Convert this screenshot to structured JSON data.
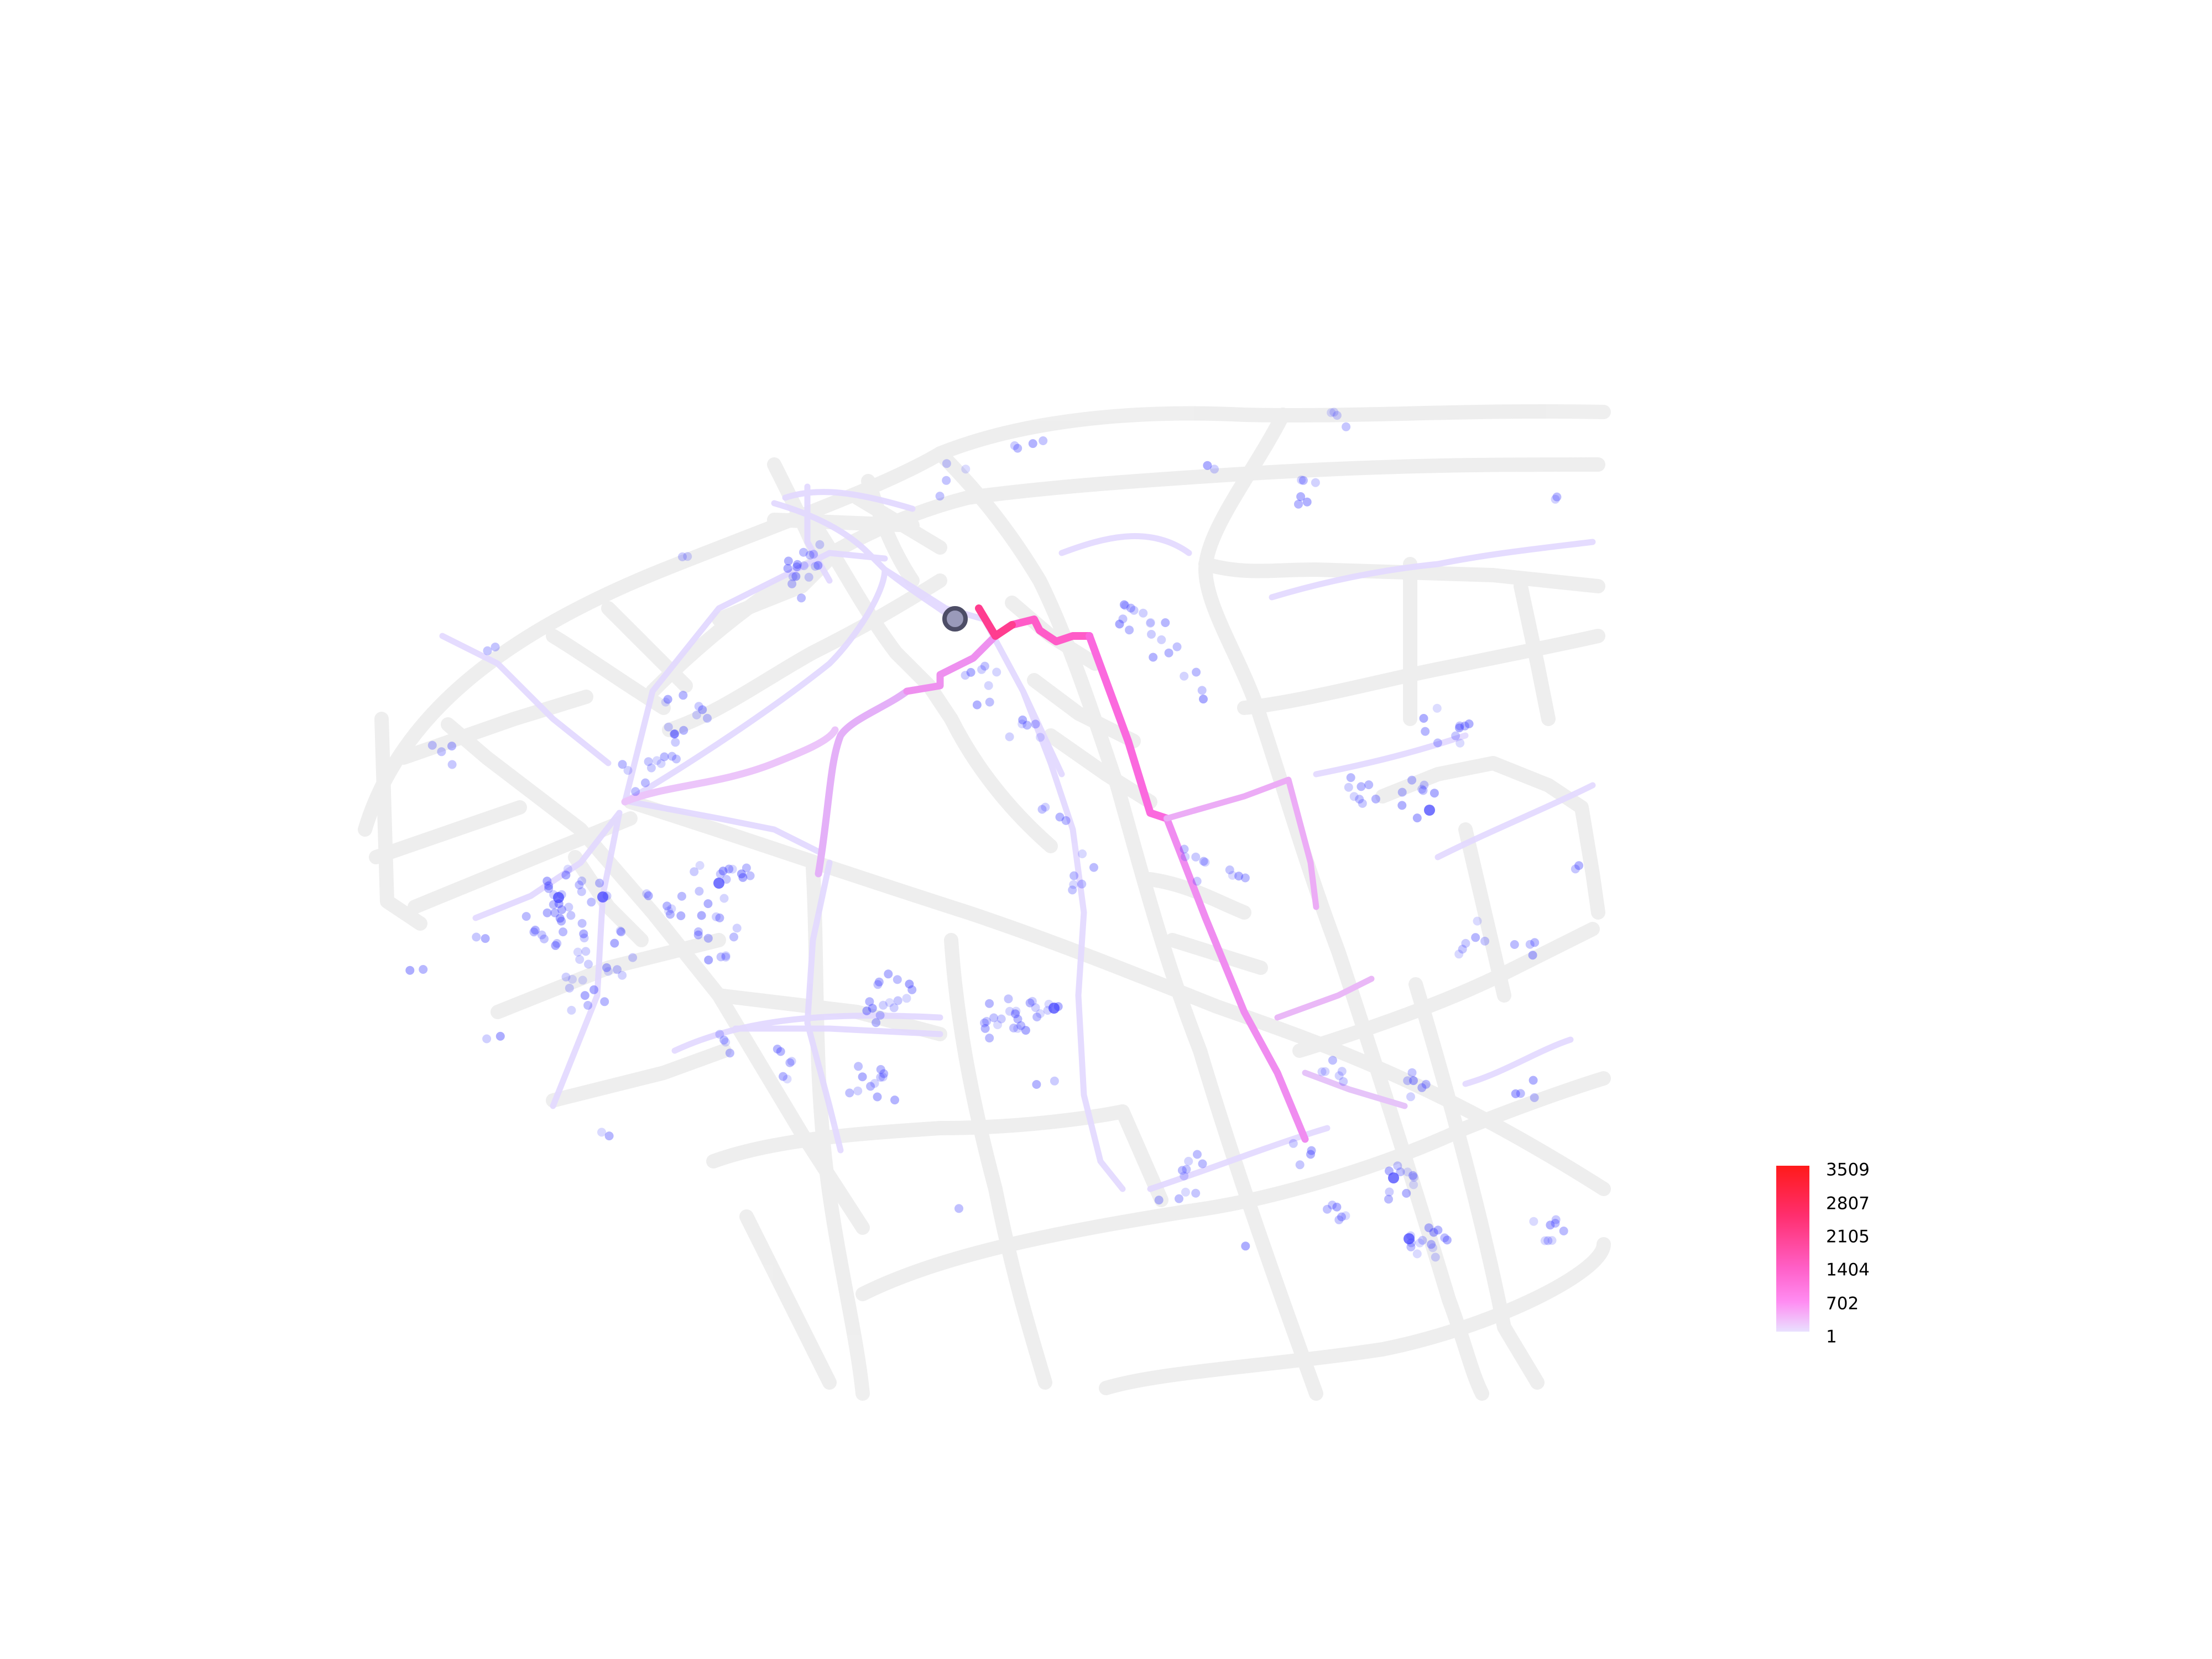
{
  "legend": {
    "ticks": [
      "3509",
      "2807",
      "2105",
      "1404",
      "702",
      "1"
    ],
    "max_value": 3509,
    "min_value": 1,
    "gradient_colors": [
      "#ff1a1a",
      "#ff2e6e",
      "#ff60c8",
      "#ff8cf2",
      "#e9e0ff"
    ]
  },
  "colors": {
    "background": "#ffffff",
    "base_road": "#ececec",
    "route_low": "#e2d8ff",
    "route_mid": "#ee7ef0",
    "route_high": "#ff2f86",
    "origin_fill": "#9a9aba",
    "origin_stroke": "#4d4d66",
    "poi": "#3b3bff"
  },
  "icons": {
    "origin": "origin-marker-icon",
    "poi": "poi-dot-icon"
  }
}
